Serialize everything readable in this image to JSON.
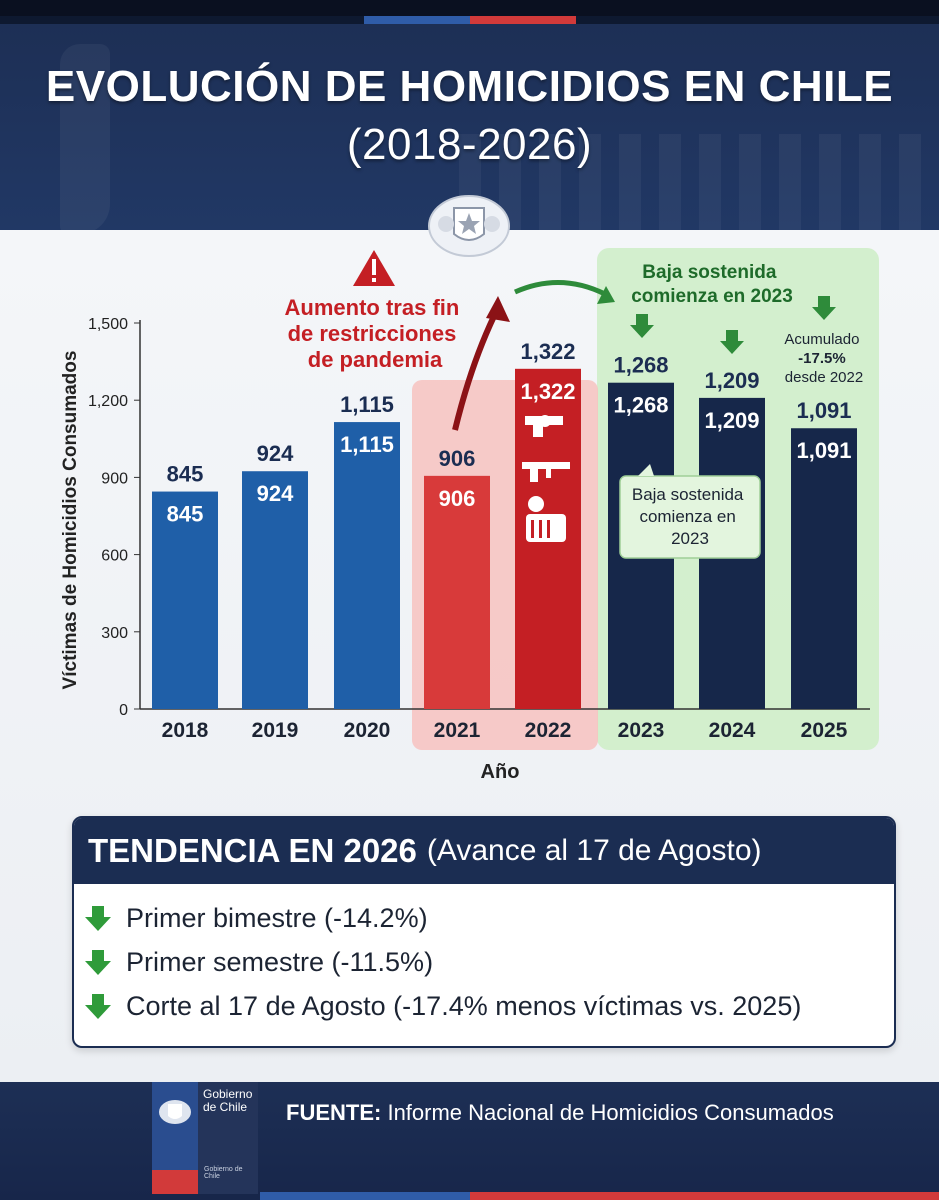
{
  "header": {
    "title_line1": "EVOLUCIÓN DE HOMICIDIOS EN CHILE",
    "title_line2": "(2018-2026)"
  },
  "chart_data": {
    "type": "bar",
    "categories": [
      "2018",
      "2019",
      "2020",
      "2021",
      "2022",
      "2023",
      "2024",
      "2025"
    ],
    "values": [
      845,
      924,
      1115,
      906,
      1322,
      1268,
      1209,
      1091
    ],
    "value_labels": [
      "845",
      "924",
      "1,115",
      "906",
      "1,322",
      "1,268",
      "1,209",
      "1,091"
    ],
    "xlabel": "Año",
    "ylabel": "Víctimas de Homicidios Consumados",
    "ylim": [
      0,
      1500
    ],
    "yticks": [
      0,
      300,
      600,
      900,
      1200,
      1500
    ],
    "ytick_labels": [
      "0",
      "300",
      "600",
      "900",
      "1,200",
      "1,500"
    ],
    "bar_colors": [
      "#1f5fa8",
      "#1f5fa8",
      "#1f5fa8",
      "#d83a3a",
      "#c41f24",
      "#16274a",
      "#16274a",
      "#16274a"
    ],
    "annotations": {
      "pandemic": "Aumento tras fin de restricciones de pandemia",
      "decline_title": "Baja sostenida comienza en 2023",
      "decline_callout": "Baja sostenida comienza en 2023",
      "accumulated_line1": "Acumulado",
      "accumulated_line2": "-17.5%",
      "accumulated_line3": "desde 2022"
    }
  },
  "trend": {
    "title_bold": "TENDENCIA EN 2026",
    "title_rest": "(Avance al 17 de Agosto)",
    "items": [
      "Primer bimestre (-14.2%)",
      "Primer semestre (-11.5%)",
      "Corte al 17 de Agosto (-17.4% menos víctimas vs. 2025)"
    ],
    "arrow_color": "#2f9b3a"
  },
  "footer": {
    "logo_line1": "Gobierno",
    "logo_line2": "de Chile",
    "logo_sub": "Gobierno de Chile",
    "source_label": "FUENTE:",
    "source_text": "Informe Nacional de Homicidios Consumados"
  }
}
